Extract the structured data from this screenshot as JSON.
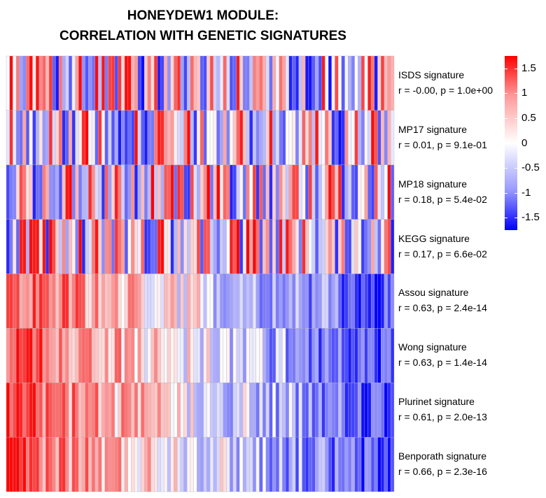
{
  "chart_data": {
    "type": "heatmap",
    "title": "HONEYDEW1 MODULE:\nCORRELATION WITH GENETIC SIGNATURES",
    "title_lines": [
      "HONEYDEW1 MODULE:",
      "CORRELATION WITH GENETIC SIGNATURES"
    ],
    "rows": [
      {
        "name": "ISDS signature",
        "stat": "r = -0.00, p = 1.0e+00",
        "r": -0.0,
        "pattern": "random"
      },
      {
        "name": "MP17 signature",
        "stat": "r = 0.01, p = 9.1e-01",
        "r": 0.01,
        "pattern": "random"
      },
      {
        "name": "MP18 signature",
        "stat": "r = 0.18, p = 5.4e-02",
        "r": 0.18,
        "pattern": "random"
      },
      {
        "name": "KEGG signature",
        "stat": "r = 0.17, p = 6.6e-02",
        "r": 0.17,
        "pattern": "random"
      },
      {
        "name": "Assou signature",
        "stat": "r = 0.63, p = 2.4e-14",
        "r": 0.63,
        "pattern": "gradient"
      },
      {
        "name": "Wong signature",
        "stat": "r = 0.63, p = 1.4e-14",
        "r": 0.63,
        "pattern": "gradient"
      },
      {
        "name": "Plurinet signature",
        "stat": "r = 0.61, p = 2.0e-13",
        "r": 0.61,
        "pattern": "gradient"
      },
      {
        "name": "Benporath signature",
        "stat": "r = 0.66, p = 2.3e-16",
        "r": 0.66,
        "pattern": "gradient"
      }
    ],
    "n_columns": 118,
    "value_range": [
      -1.75,
      1.75
    ],
    "colorbar_ticks": [
      "1.5",
      "1",
      "0.5",
      "0",
      "-0.5",
      "-1",
      "-1.5"
    ],
    "colorbar_tick_values": [
      1.5,
      1,
      0.5,
      0,
      -0.5,
      -1,
      -1.5
    ],
    "colors": {
      "high": "#ff0000",
      "mid": "#ffffff",
      "low": "#0000ff"
    }
  }
}
